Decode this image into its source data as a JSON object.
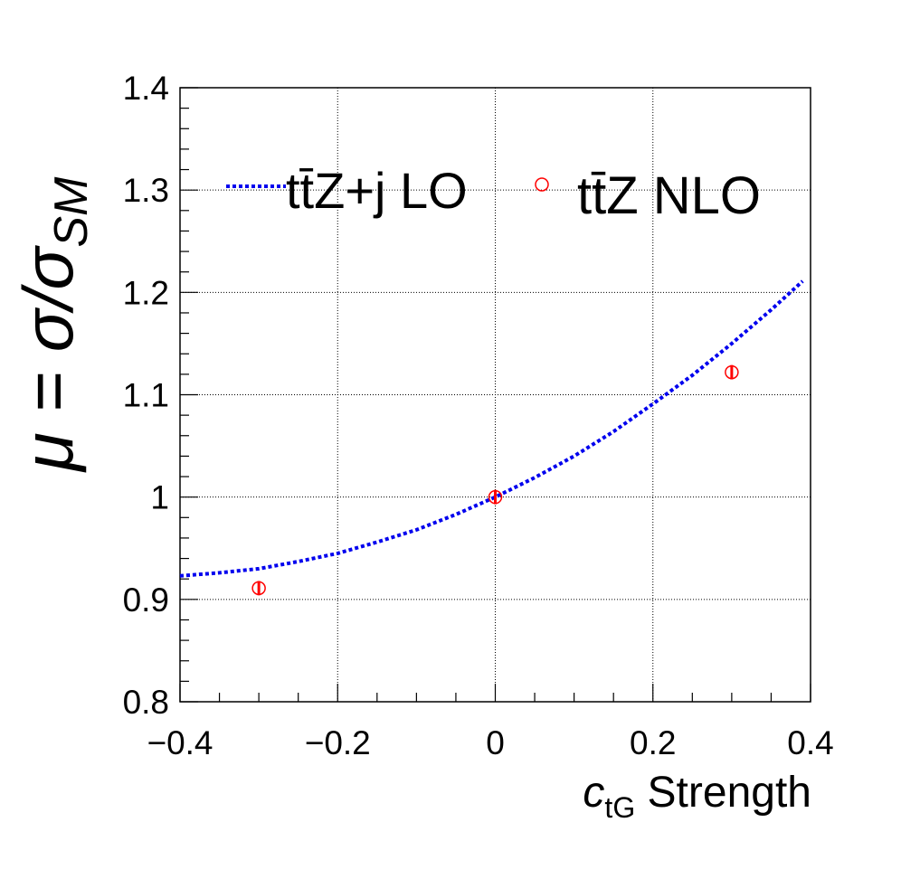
{
  "chart_data": {
    "type": "scatter",
    "xlabel": {
      "main": "c",
      "sub": "tG",
      "rest": " Strength"
    },
    "ylabel": {
      "parts": [
        "μ = σ/σ",
        "SM"
      ]
    },
    "xlim": [
      -0.4,
      0.4
    ],
    "ylim": [
      0.8,
      1.4
    ],
    "x_ticks": [
      -0.4,
      -0.2,
      0,
      0.2,
      0.4
    ],
    "x_tick_labels": [
      "−0.4",
      "−0.2",
      "0",
      "0.2",
      "0.4"
    ],
    "y_ticks": [
      0.8,
      0.9,
      1.0,
      1.1,
      1.2,
      1.3,
      1.4
    ],
    "y_tick_labels": [
      "0.8",
      "0.9",
      "1",
      "1.1",
      "1.2",
      "1.3",
      "1.4"
    ],
    "grid": true,
    "legend_position": "top",
    "series": [
      {
        "name": "tt̄Z+j LO",
        "style": "dotted-line",
        "color": "#0000ee",
        "x": [
          -0.4,
          -0.35,
          -0.3,
          -0.25,
          -0.2,
          -0.15,
          -0.1,
          -0.05,
          0,
          0.05,
          0.1,
          0.15,
          0.2,
          0.25,
          0.3,
          0.35,
          0.39
        ],
        "y": [
          0.923,
          0.926,
          0.93,
          0.937,
          0.945,
          0.956,
          0.968,
          0.983,
          1.0,
          1.019,
          1.04,
          1.064,
          1.091,
          1.119,
          1.15,
          1.183,
          1.211
        ]
      },
      {
        "name": "tt̄Z NLO",
        "style": "markers-open-circle",
        "color": "#ff0000",
        "x": [
          -0.3,
          0.0,
          0.3
        ],
        "y": [
          0.911,
          1.0,
          1.122
        ],
        "yerr": [
          0.007,
          0.007,
          0.007
        ]
      }
    ]
  }
}
